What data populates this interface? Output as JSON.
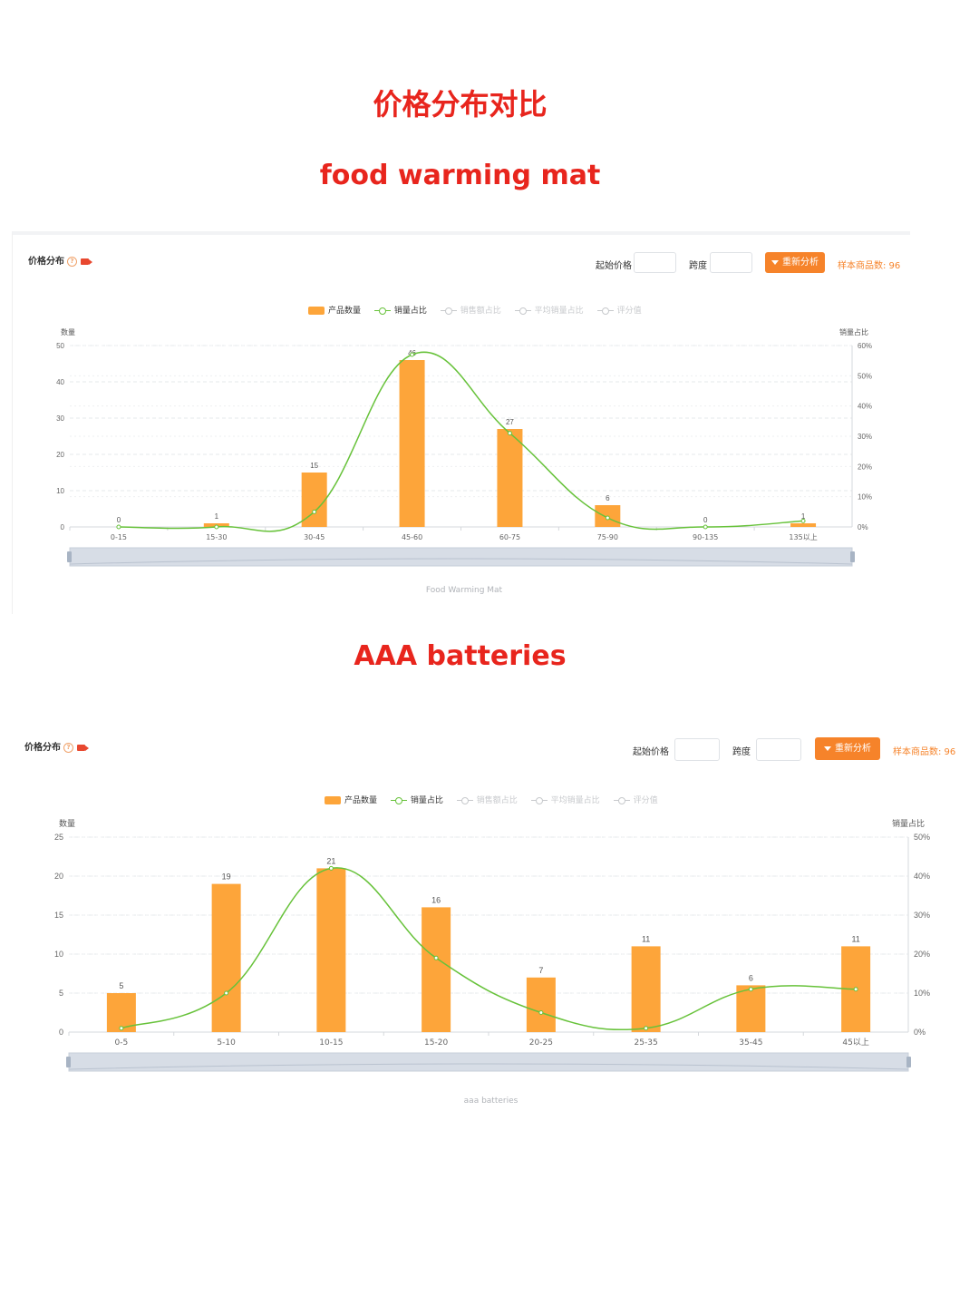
{
  "page": {
    "title": "价格分布对比",
    "chart1_heading": "food warming mat",
    "chart2_heading": "AAA batteries"
  },
  "panel1": {
    "header_title": "价格分布",
    "start_price_label": "起始价格",
    "span_label": "跨度",
    "reanalyze_label": "重新分析",
    "sample_text": "样本商品数: 96",
    "legend": [
      "产品数量",
      "销量占比",
      "销售额占比",
      "平均销量占比",
      "评分值"
    ],
    "footer": "Food Warming Mat"
  },
  "panel2": {
    "header_title": "价格分布",
    "start_price_label": "起始价格",
    "span_label": "跨度",
    "reanalyze_label": "重新分析",
    "sample_text": "样本商品数: 96",
    "legend": [
      "产品数量",
      "销量占比",
      "销售额占比",
      "平均销量占比",
      "评分值"
    ],
    "footer": "aaa batteries"
  },
  "colors": {
    "bar": "#fda53a",
    "line": "#67c23a",
    "accent": "#f6832a",
    "heading": "#e8251d"
  },
  "chart_data": [
    {
      "type": "bar",
      "title": "",
      "categories": [
        "0-15",
        "15-30",
        "30-45",
        "45-60",
        "60-75",
        "75-90",
        "90-135",
        "135以上"
      ],
      "series": [
        {
          "name": "产品数量",
          "type": "bar",
          "values": [
            0,
            1,
            15,
            46,
            27,
            6,
            0,
            1
          ],
          "data_labels": [
            "0",
            "1",
            "15",
            "46",
            "27",
            "6",
            "0",
            "1"
          ]
        },
        {
          "name": "销量占比",
          "type": "line",
          "axis": "right",
          "values": [
            0,
            0,
            5,
            57,
            31,
            3,
            0,
            2
          ]
        }
      ],
      "ylabel": "数量",
      "y2label": "销量占比",
      "ylim": [
        0,
        50
      ],
      "yticks": [
        "0",
        "10",
        "20",
        "30",
        "40",
        "50"
      ],
      "y2lim": [
        0,
        60
      ],
      "y2ticks": [
        "0%",
        "10%",
        "20%",
        "30%",
        "40%",
        "50%",
        "60%"
      ],
      "grid": true,
      "legend_position": "top-center"
    },
    {
      "type": "bar",
      "title": "",
      "categories": [
        "0-5",
        "5-10",
        "10-15",
        "15-20",
        "20-25",
        "25-35",
        "35-45",
        "45以上"
      ],
      "series": [
        {
          "name": "产品数量",
          "type": "bar",
          "values": [
            5,
            19,
            21,
            16,
            7,
            11,
            6,
            11
          ],
          "data_labels": [
            "5",
            "19",
            "21",
            "16",
            "7",
            "11",
            "6",
            "11"
          ]
        },
        {
          "name": "销量占比",
          "type": "line",
          "axis": "right",
          "values": [
            1,
            10,
            42,
            19,
            5,
            1,
            11,
            11
          ]
        }
      ],
      "ylabel": "数量",
      "y2label": "销量占比",
      "ylim": [
        0,
        25
      ],
      "yticks": [
        "0",
        "5",
        "10",
        "15",
        "20",
        "25"
      ],
      "y2lim": [
        0,
        50
      ],
      "y2ticks": [
        "0%",
        "10%",
        "20%",
        "30%",
        "40%",
        "50%"
      ],
      "grid": true,
      "legend_position": "top-center"
    }
  ]
}
